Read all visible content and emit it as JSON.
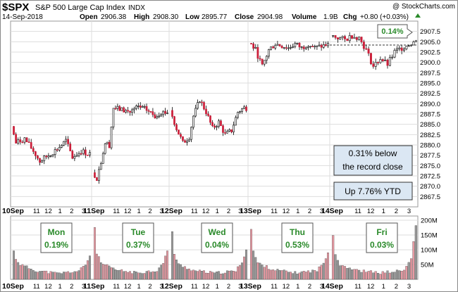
{
  "header": {
    "symbol": "$SPX",
    "name": "S&P 500 Large Cap Index",
    "exchange": "INDX",
    "watermark": "@ StockCharts.com",
    "date": "14-Sep-2018",
    "open_label": "Open",
    "open_value": "2906.38",
    "high_label": "High",
    "high_value": "2908.30",
    "low_label": "Low",
    "low_value": "2895.77",
    "close_label": "Close",
    "close_value": "2904.98",
    "volume_label": "Volume",
    "volume_value": "1.9B",
    "chg_label": "Chg",
    "chg_value": "+0.80 (+0.03%)"
  },
  "annotations": {
    "pct_badge": "0.14%",
    "record_line1": "0.31% below",
    "record_line2": "the record close",
    "ytd": "Up 7.76% YTD"
  },
  "colors": {
    "up": "#ffffff",
    "down": "#cc1f3a",
    "vol_up": "#999999",
    "vol_down": "#e89aa3",
    "grid": "#dddddd",
    "badge_bg": "#dbe7f3",
    "day_green": "#2a8a2a"
  },
  "chart_data": [
    {
      "type": "candlestick",
      "title": "$SPX S&P 500 Large Cap Index INDX",
      "interval": "10-minute",
      "ylim": [
        2865,
        2910
      ],
      "y_ticks": [
        "2907.5",
        "2905.0",
        "2902.5",
        "2900.0",
        "2897.5",
        "2895.0",
        "2892.5",
        "2890.0",
        "2887.5",
        "2885.0",
        "2882.5",
        "2880.0",
        "2877.5",
        "2875.0",
        "2872.5",
        "2870.0",
        "2867.5"
      ],
      "x_ticks": [
        "10Sep",
        "11",
        "12",
        "1",
        "2",
        "3",
        "11Sep",
        "11",
        "12",
        "1",
        "2",
        "3",
        "12Sep",
        "11",
        "12",
        "1",
        "2",
        "3",
        "13Sep",
        "11",
        "12",
        "1",
        "2",
        "3",
        "14Sep",
        "11",
        "12",
        "1",
        "2",
        "3"
      ],
      "days": [
        {
          "date": "10Sep",
          "change": "0.19%",
          "keypoints": [
            [
              0,
              2884.5
            ],
            [
              2,
              2880.5
            ],
            [
              6,
              2881.5
            ],
            [
              10,
              2878.5
            ],
            [
              13,
              2876.0
            ],
            [
              17,
              2877.5
            ],
            [
              21,
              2879.0
            ],
            [
              25,
              2881.0
            ],
            [
              28,
              2877.0
            ],
            [
              32,
              2878.5
            ],
            [
              35,
              2877.9
            ]
          ]
        },
        {
          "date": "11Sep",
          "change": "0.37%",
          "keypoints": [
            [
              0,
              2873.0
            ],
            [
              2,
              2872.0
            ],
            [
              4,
              2876.0
            ],
            [
              6,
              2880.5
            ],
            [
              8,
              2880.0
            ],
            [
              10,
              2889.0
            ],
            [
              14,
              2888.5
            ],
            [
              18,
              2888.0
            ],
            [
              22,
              2889.2
            ],
            [
              26,
              2888.5
            ],
            [
              30,
              2887.0
            ],
            [
              33,
              2888.0
            ],
            [
              35,
              2887.9
            ]
          ]
        },
        {
          "date": "12Sep",
          "change": "0.04%",
          "keypoints": [
            [
              0,
              2888.5
            ],
            [
              3,
              2884.0
            ],
            [
              6,
              2880.5
            ],
            [
              9,
              2882.0
            ],
            [
              11,
              2887.0
            ],
            [
              14,
              2891.0
            ],
            [
              17,
              2888.0
            ],
            [
              20,
              2884.0
            ],
            [
              23,
              2885.5
            ],
            [
              26,
              2882.5
            ],
            [
              29,
              2883.5
            ],
            [
              32,
              2888.0
            ],
            [
              35,
              2889.0
            ]
          ]
        },
        {
          "date": "13Sep",
          "change": "0.53%",
          "keypoints": [
            [
              0,
              2905.0
            ],
            [
              3,
              2903.0
            ],
            [
              6,
              2899.0
            ],
            [
              9,
              2903.0
            ],
            [
              12,
              2904.5
            ],
            [
              15,
              2904.0
            ],
            [
              18,
              2903.5
            ],
            [
              21,
              2904.5
            ],
            [
              24,
              2903.5
            ],
            [
              27,
              2904.5
            ],
            [
              30,
              2903.5
            ],
            [
              35,
              2904.2
            ]
          ]
        },
        {
          "date": "14Sep",
          "change": "0.03%",
          "keypoints": [
            [
              0,
              2906.5
            ],
            [
              3,
              2906.0
            ],
            [
              6,
              2905.5
            ],
            [
              9,
              2906.5
            ],
            [
              12,
              2906.0
            ],
            [
              15,
              2903.0
            ],
            [
              18,
              2899.0
            ],
            [
              21,
              2901.0
            ],
            [
              24,
              2899.5
            ],
            [
              27,
              2902.5
            ],
            [
              30,
              2903.5
            ],
            [
              35,
              2905.0
            ]
          ]
        }
      ],
      "reference_line": 2904.2
    },
    {
      "type": "bar",
      "title": "Volume",
      "ylim": [
        0,
        200000000
      ],
      "y_ticks": [
        "200M",
        "150M",
        "100M",
        "50M"
      ],
      "days": [
        {
          "date": "10Sep",
          "keypoints": [
            [
              0,
              95
            ],
            [
              1,
              70
            ],
            [
              3,
              50
            ],
            [
              10,
              30
            ],
            [
              20,
              20
            ],
            [
              30,
              28
            ],
            [
              33,
              50
            ],
            [
              35,
              80
            ]
          ]
        },
        {
          "date": "11Sep",
          "keypoints": [
            [
              0,
              175
            ],
            [
              1,
              90
            ],
            [
              3,
              55
            ],
            [
              10,
              32
            ],
            [
              20,
              22
            ],
            [
              30,
              30
            ],
            [
              33,
              55
            ],
            [
              35,
              95
            ]
          ]
        },
        {
          "date": "12Sep",
          "keypoints": [
            [
              0,
              165
            ],
            [
              1,
              85
            ],
            [
              3,
              50
            ],
            [
              10,
              30
            ],
            [
              20,
              21
            ],
            [
              30,
              28
            ],
            [
              33,
              60
            ],
            [
              35,
              100
            ]
          ]
        },
        {
          "date": "13Sep",
          "keypoints": [
            [
              0,
              170
            ],
            [
              1,
              95
            ],
            [
              3,
              55
            ],
            [
              10,
              33
            ],
            [
              20,
              22
            ],
            [
              30,
              30
            ],
            [
              33,
              55
            ],
            [
              35,
              95
            ]
          ]
        },
        {
          "date": "14Sep",
          "keypoints": [
            [
              0,
              150
            ],
            [
              1,
              85
            ],
            [
              3,
              50
            ],
            [
              10,
              30
            ],
            [
              20,
              22
            ],
            [
              30,
              30
            ],
            [
              33,
              70
            ],
            [
              35,
              185
            ]
          ]
        }
      ]
    }
  ]
}
